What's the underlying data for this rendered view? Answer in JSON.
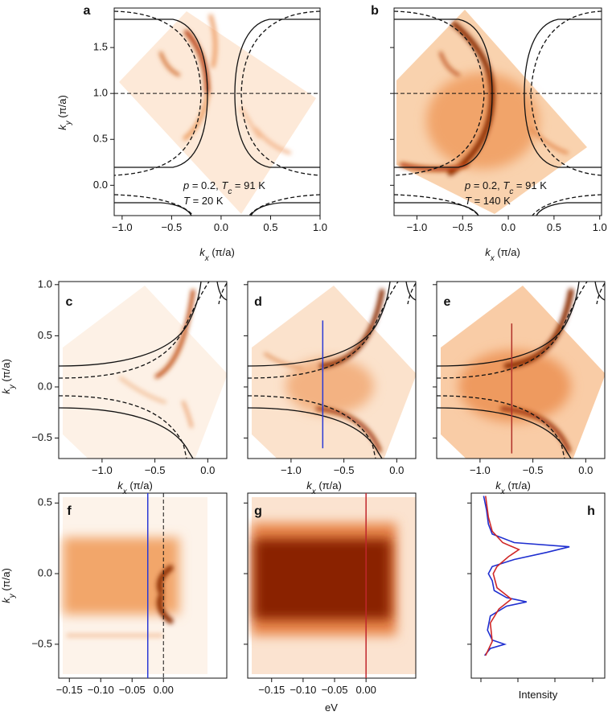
{
  "chart_data": [
    {
      "type": "heatmap",
      "panel": "a",
      "xlim": [
        -1.08,
        1.0
      ],
      "ylim": [
        -0.33,
        1.93
      ],
      "xticks": [
        {
          "value": -1.0,
          "label": "−1.0"
        },
        {
          "value": -0.5,
          "label": "−0.5"
        },
        {
          "value": 0.0,
          "label": "0.0"
        },
        {
          "value": 0.5,
          "label": "0.5"
        },
        {
          "value": 1.0,
          "label": "1.0"
        }
      ],
      "yticks": [
        {
          "value": 0.0,
          "label": "0.0"
        },
        {
          "value": 0.5,
          "label": "0.5"
        },
        {
          "value": 1.0,
          "label": "1.0"
        },
        {
          "value": 1.5,
          "label": "1.5"
        }
      ],
      "xlabel": [
        "k",
        "x",
        " (π/a)"
      ],
      "ylabel": [
        "k",
        "y",
        " (π/a)"
      ],
      "hline": 1.0,
      "annotation": [
        [
          "p",
          " = 0.2, ",
          "T",
          "c",
          " = 91 K"
        ],
        [
          "T",
          " = 20 K"
        ]
      ]
    },
    {
      "type": "heatmap",
      "panel": "b",
      "xlim": [
        -1.25,
        1.02
      ],
      "ylim": [
        -0.33,
        1.93
      ],
      "xticks": [
        {
          "value": -1.0,
          "label": "−1.0"
        },
        {
          "value": -0.5,
          "label": "−0.5"
        },
        {
          "value": 0.0,
          "label": "0.0"
        },
        {
          "value": 0.5,
          "label": "0.5"
        },
        {
          "value": 1.0,
          "label": "1.0"
        }
      ],
      "yticks": [
        0,
        0.5,
        1,
        1.5
      ],
      "show_ytick_labels": false,
      "xlabel": [
        "k",
        "x",
        " (π/a)"
      ],
      "hline": 1.0,
      "annotation": [
        [
          "p",
          " = 0.2, ",
          "T",
          "c",
          " = 91 K"
        ],
        [
          "T",
          " = 140 K"
        ]
      ]
    },
    {
      "type": "heatmap",
      "panel": "c",
      "xlim": [
        -1.41,
        0.18
      ],
      "ylim": [
        -0.7,
        1.03
      ],
      "xticks": [
        {
          "value": -1.0,
          "label": "−1.0"
        },
        {
          "value": -0.5,
          "label": "−0.5"
        },
        {
          "value": 0.0,
          "label": "0.0"
        }
      ],
      "yticks": [
        {
          "value": -0.5,
          "label": "−0.5"
        },
        {
          "value": 0.0,
          "label": "0.0"
        },
        {
          "value": 0.5,
          "label": "0.5"
        },
        {
          "value": 1.0,
          "label": "1.0"
        }
      ],
      "xlabel": [
        "k",
        "x",
        " (π/a)"
      ],
      "ylabel": [
        "k",
        "y",
        " (π/a)"
      ]
    },
    {
      "type": "heatmap",
      "panel": "d",
      "xlim": [
        -1.41,
        0.18
      ],
      "ylim": [
        -0.7,
        1.03
      ],
      "xticks": [
        {
          "value": -1.0,
          "label": "−1.0"
        },
        {
          "value": -0.5,
          "label": "−0.5"
        },
        {
          "value": 0.0,
          "label": "0.0"
        }
      ],
      "yticks": [
        -0.5,
        0,
        0.5,
        1
      ],
      "show_ytick_labels": false,
      "xlabel": [
        "k",
        "x",
        " (π/a)"
      ],
      "cut": {
        "kx": -0.7,
        "ky": [
          -0.6,
          0.65
        ],
        "color": "#2a3ad6"
      }
    },
    {
      "type": "heatmap",
      "panel": "e",
      "xlim": [
        -1.41,
        0.18
      ],
      "ylim": [
        -0.7,
        1.03
      ],
      "xticks": [
        {
          "value": -1.0,
          "label": "−1.0"
        },
        {
          "value": -0.5,
          "label": "−0.5"
        },
        {
          "value": 0.0,
          "label": "0.0"
        }
      ],
      "yticks": [
        -0.5,
        0,
        0.5,
        1
      ],
      "show_ytick_labels": false,
      "xlabel": [
        "k",
        "x",
        " (π/a)"
      ],
      "cut": {
        "kx": -0.7,
        "ky": [
          -0.65,
          0.62
        ],
        "color": "#b0302a"
      }
    },
    {
      "type": "heatmap",
      "panel": "f",
      "xlim": [
        -0.167,
        0.101
      ],
      "ylim": [
        -0.74,
        0.57
      ],
      "xticks": [
        {
          "value": -0.15,
          "label": "−0.15"
        },
        {
          "value": -0.1,
          "label": "−0.10"
        },
        {
          "value": -0.05,
          "label": "−0.05"
        },
        {
          "value": 0.0,
          "label": "0.00"
        }
      ],
      "yticks": [
        {
          "value": -0.5,
          "label": "−0.5"
        },
        {
          "value": 0.0,
          "label": "0.0"
        },
        {
          "value": 0.5,
          "label": "0.5"
        }
      ],
      "ylabel": [
        "k",
        "y",
        " (π/a)"
      ],
      "vline": {
        "x": 0,
        "style": "dashed"
      },
      "cut": {
        "x": -0.025,
        "color": "#2a3ad6"
      }
    },
    {
      "type": "heatmap",
      "panel": "g",
      "xlim": [
        -0.188,
        0.079
      ],
      "ylim": [
        -0.74,
        0.57
      ],
      "xticks": [
        {
          "value": -0.15,
          "label": "−0.15"
        },
        {
          "value": -0.1,
          "label": "−0.10"
        },
        {
          "value": -0.05,
          "label": "−0.05"
        },
        {
          "value": 0.0,
          "label": "0.00"
        }
      ],
      "yticks": [
        -0.5,
        0,
        0.5
      ],
      "show_ytick_labels": false,
      "xlabel": [
        "eV"
      ],
      "cut": {
        "x": 0,
        "color": "#c0262c"
      }
    },
    {
      "type": "line",
      "panel": "h",
      "xlim": [
        -0.1,
        1.3
      ],
      "ylim": [
        -0.74,
        0.57
      ],
      "yticks": [
        -0.5,
        0,
        0.5
      ],
      "show_ytick_labels": false,
      "xlabel": [
        "Intensity"
      ],
      "series": [
        {
          "color": "#1f2fd0",
          "ky": [
            0.55,
            0.45,
            0.35,
            0.28,
            0.22,
            0.19,
            0.15,
            0.1,
            0.05,
            0.0,
            -0.05,
            -0.12,
            -0.17,
            -0.2,
            -0.23,
            -0.3,
            -0.4,
            -0.47,
            -0.5,
            -0.53,
            -0.58
          ],
          "intensity": [
            0.03,
            0.06,
            0.08,
            0.12,
            0.35,
            0.93,
            0.69,
            0.35,
            0.12,
            0.08,
            0.12,
            0.14,
            0.27,
            0.48,
            0.27,
            0.1,
            0.07,
            0.12,
            0.25,
            0.1,
            0.04
          ]
        },
        {
          "color": "#d02828",
          "ky": [
            0.55,
            0.4,
            0.3,
            0.22,
            0.17,
            0.12,
            0.05,
            0.0,
            -0.1,
            -0.18,
            -0.25,
            -0.35,
            -0.48,
            -0.58
          ],
          "intensity": [
            0.05,
            0.08,
            0.12,
            0.23,
            0.4,
            0.29,
            0.17,
            0.13,
            0.17,
            0.32,
            0.19,
            0.1,
            0.12,
            0.05
          ]
        }
      ]
    }
  ]
}
